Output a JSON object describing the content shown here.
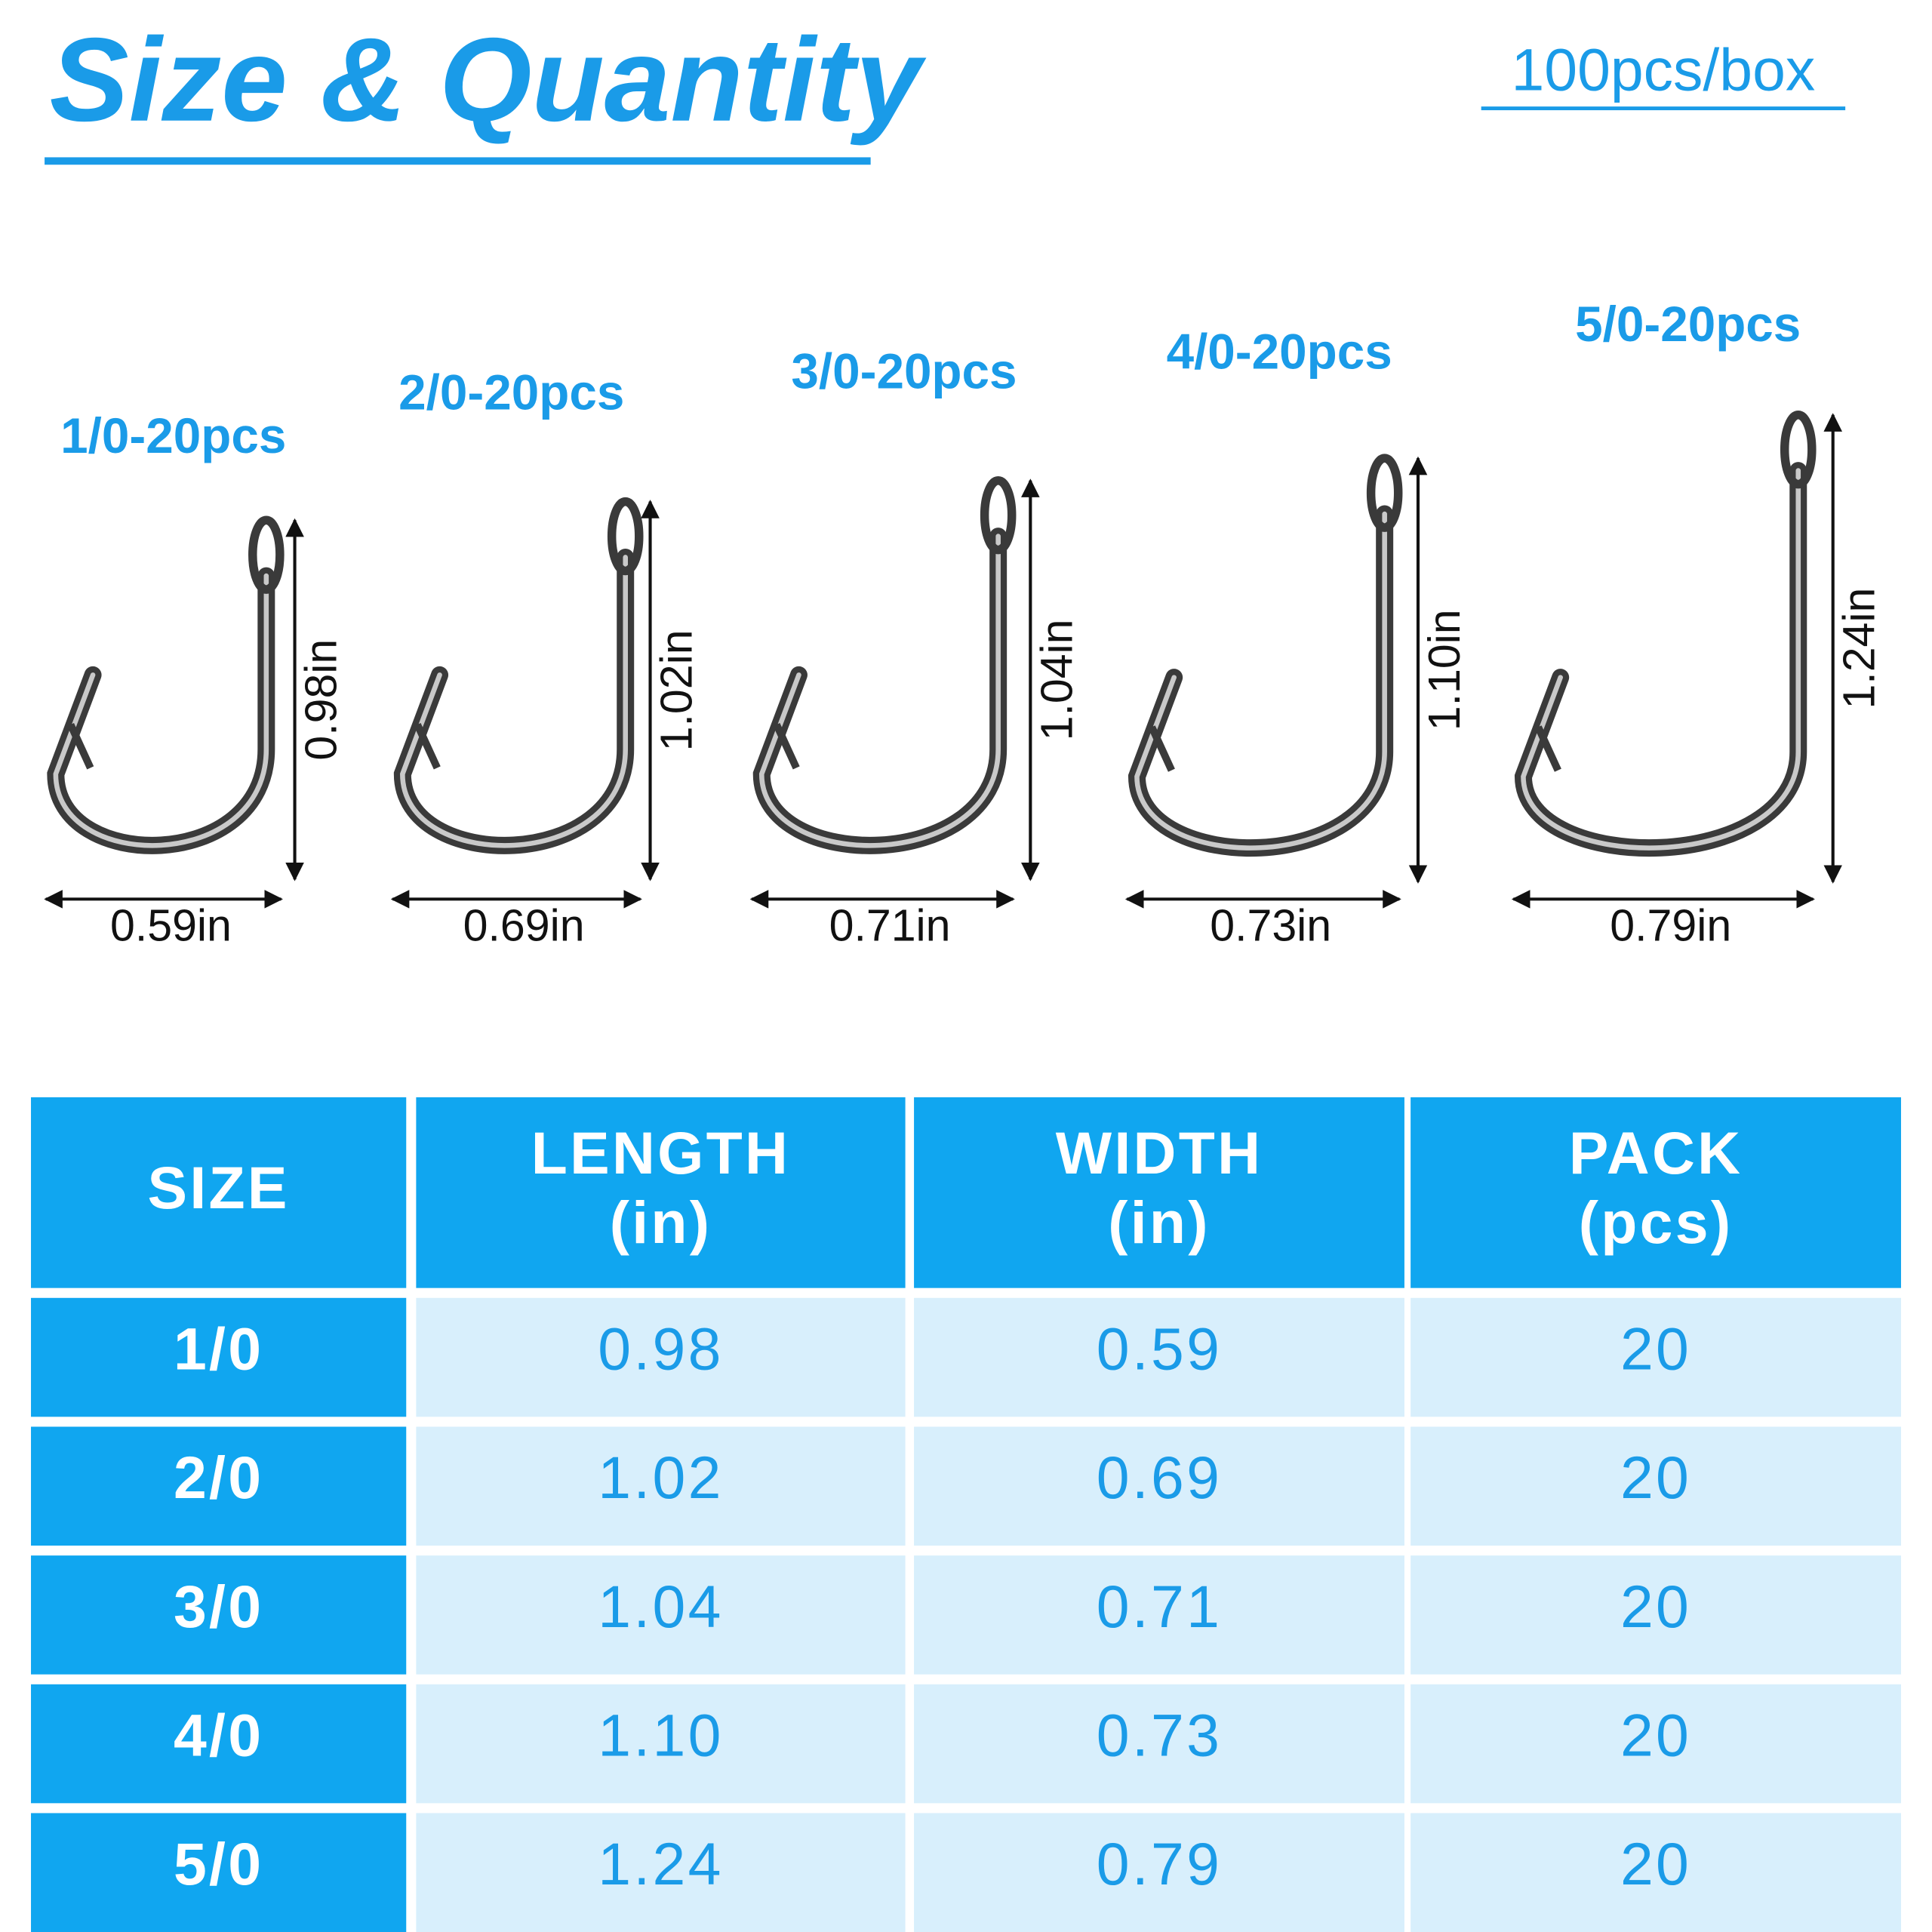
{
  "header": {
    "title": "Size & Quantity",
    "subtitle": "100pcs/box"
  },
  "hooks": [
    {
      "label": "1/0-20pcs",
      "length": "0.98in",
      "width": "0.59in"
    },
    {
      "label": "2/0-20pcs",
      "length": "1.02in",
      "width": "0.69in"
    },
    {
      "label": "3/0-20pcs",
      "length": "1.04in",
      "width": "0.71in"
    },
    {
      "label": "4/0-20pcs",
      "length": "1.10in",
      "width": "0.73in"
    },
    {
      "label": "5/0-20pcs",
      "length": "1.24in",
      "width": "0.79in"
    }
  ],
  "table": {
    "header": [
      [
        "SIZE"
      ],
      [
        "LENGTH",
        "(in)"
      ],
      [
        "WIDTH",
        "(in)"
      ],
      [
        "PACK",
        "(pcs)"
      ]
    ],
    "rows": [
      [
        "1/0",
        "0.98",
        "0.59",
        "20"
      ],
      [
        "2/0",
        "1.02",
        "0.69",
        "20"
      ],
      [
        "3/0",
        "1.04",
        "0.71",
        "20"
      ],
      [
        "4/0",
        "1.10",
        "0.73",
        "20"
      ],
      [
        "5/0",
        "1.24",
        "0.79",
        "20"
      ]
    ]
  }
}
